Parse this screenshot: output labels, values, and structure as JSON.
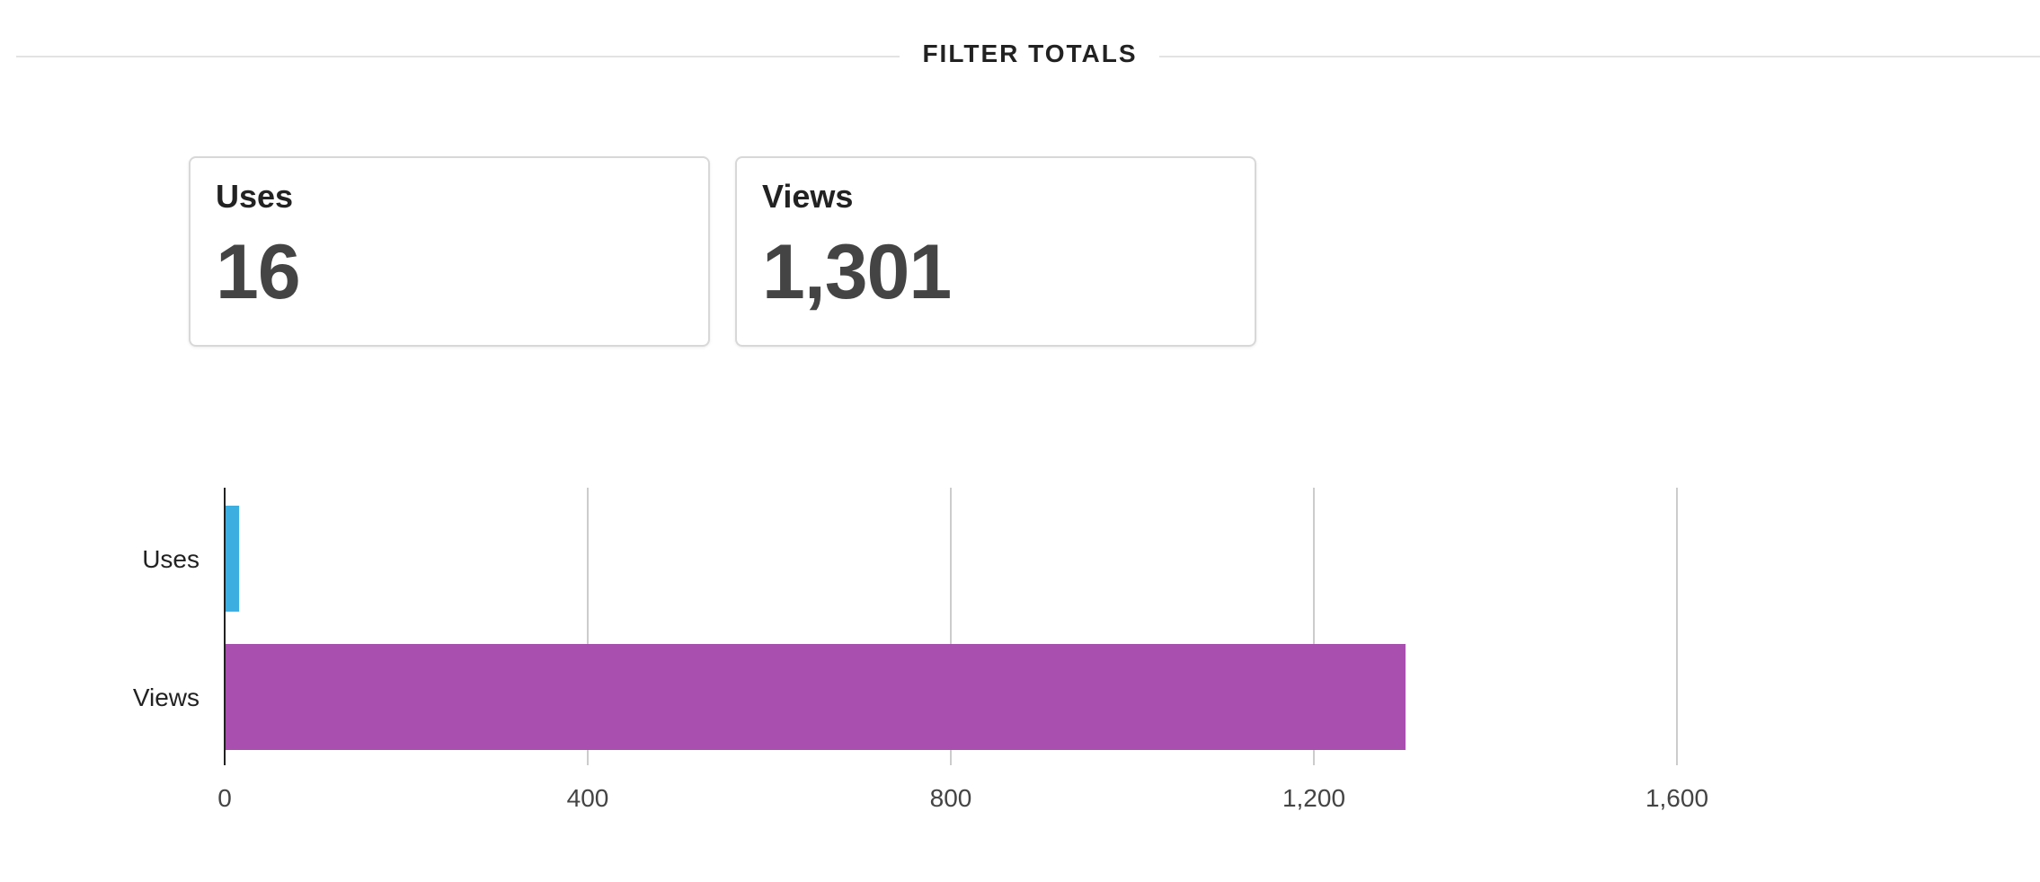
{
  "header": {
    "title": "FILTER TOTALS"
  },
  "cards": [
    {
      "label": "Uses",
      "value": "16"
    },
    {
      "label": "Views",
      "value": "1,301"
    }
  ],
  "chart_data": {
    "type": "bar",
    "orientation": "horizontal",
    "categories": [
      "Uses",
      "Views"
    ],
    "values": [
      16,
      1301
    ],
    "colors": [
      "#3daee0",
      "#a84fb0"
    ],
    "xlim": [
      0,
      2000
    ],
    "xticks": [
      0,
      400,
      800,
      1200,
      1600
    ],
    "xtick_labels": [
      "0",
      "400",
      "800",
      "1,200",
      "1,600"
    ],
    "grid": true,
    "legend": "none",
    "title": "",
    "xlabel": "",
    "ylabel": ""
  }
}
